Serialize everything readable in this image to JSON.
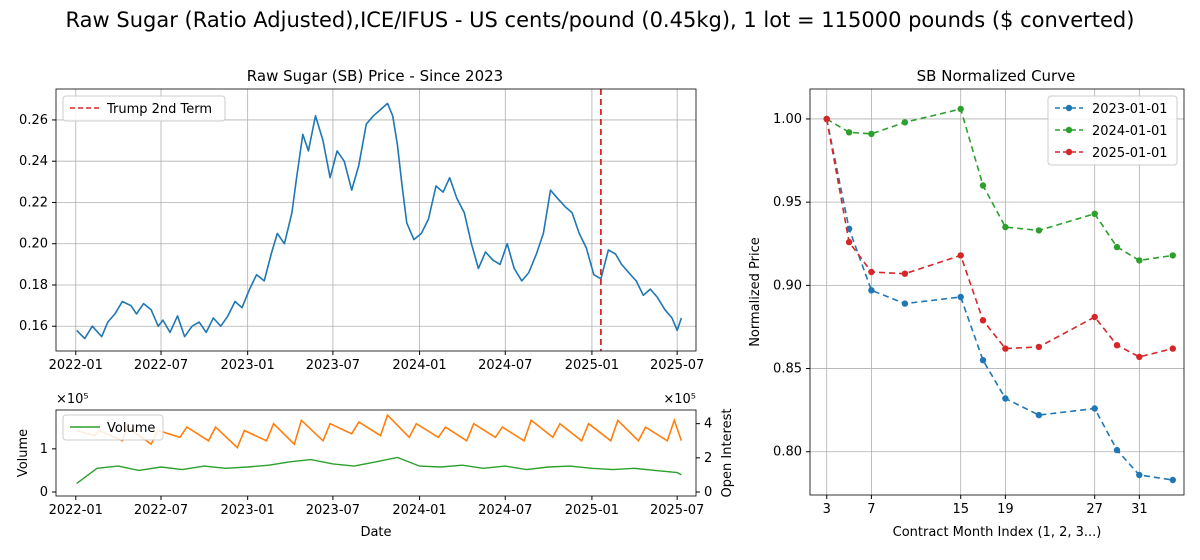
{
  "suptitle": "Raw Sugar (Ratio Adjusted),ICE/IFUS - US cents/pound (0.45kg), 1 lot = 115000 pounds ($ converted)",
  "chart_data": [
    {
      "type": "line",
      "title": "Raw Sugar (SB) Price - Since 2023",
      "xlabel": "",
      "ylabel": "",
      "x_ticks": [
        "2022-01",
        "2022-07",
        "2023-01",
        "2023-07",
        "2024-01",
        "2024-07",
        "2025-01",
        "2025-07"
      ],
      "y_ticks": [
        "0.16",
        "0.18",
        "0.20",
        "0.22",
        "0.24",
        "0.26"
      ],
      "xlim": [
        "2021-11-20",
        "2025-08-10"
      ],
      "ylim": [
        0.148,
        0.275
      ],
      "grid": true,
      "legend": "upper left",
      "color": "#1f77b4",
      "series": [
        {
          "x": [
            "2022-01-03",
            "2022-01-20",
            "2022-02-05",
            "2022-02-25",
            "2022-03-10",
            "2022-03-25",
            "2022-04-10",
            "2022-04-28",
            "2022-05-10",
            "2022-05-25",
            "2022-06-10",
            "2022-06-25",
            "2022-07-05",
            "2022-07-20",
            "2022-08-05",
            "2022-08-20",
            "2022-09-05",
            "2022-09-20",
            "2022-10-05",
            "2022-10-20",
            "2022-11-05",
            "2022-11-20",
            "2022-12-05",
            "2022-12-20",
            "2023-01-05",
            "2023-01-20",
            "2023-02-05",
            "2023-02-20",
            "2023-03-05",
            "2023-03-20",
            "2023-04-05",
            "2023-04-15",
            "2023-04-28",
            "2023-05-10",
            "2023-05-25",
            "2023-06-10",
            "2023-06-25",
            "2023-07-10",
            "2023-07-25",
            "2023-08-10",
            "2023-08-25",
            "2023-09-10",
            "2023-09-25",
            "2023-10-10",
            "2023-10-25",
            "2023-11-05",
            "2023-11-15",
            "2023-11-25",
            "2023-12-05",
            "2023-12-20",
            "2024-01-05",
            "2024-01-20",
            "2024-02-05",
            "2024-02-20",
            "2024-03-05",
            "2024-03-20",
            "2024-04-05",
            "2024-04-20",
            "2024-05-05",
            "2024-05-20",
            "2024-06-05",
            "2024-06-20",
            "2024-07-05",
            "2024-07-20",
            "2024-08-05",
            "2024-08-20",
            "2024-09-05",
            "2024-09-20",
            "2024-10-05",
            "2024-10-20",
            "2024-11-05",
            "2024-11-20",
            "2024-12-05",
            "2024-12-20",
            "2025-01-05",
            "2025-01-20",
            "2025-02-05",
            "2025-02-20",
            "2025-03-05",
            "2025-03-20",
            "2025-04-05",
            "2025-04-20",
            "2025-05-05",
            "2025-05-20",
            "2025-06-05",
            "2025-06-20",
            "2025-07-01",
            "2025-07-10"
          ],
          "y": [
            0.158,
            0.154,
            0.16,
            0.155,
            0.162,
            0.166,
            0.172,
            0.17,
            0.166,
            0.171,
            0.168,
            0.16,
            0.163,
            0.157,
            0.165,
            0.155,
            0.16,
            0.162,
            0.157,
            0.164,
            0.16,
            0.165,
            0.172,
            0.169,
            0.178,
            0.185,
            0.182,
            0.195,
            0.205,
            0.2,
            0.215,
            0.232,
            0.253,
            0.245,
            0.262,
            0.25,
            0.232,
            0.245,
            0.24,
            0.226,
            0.238,
            0.258,
            0.262,
            0.265,
            0.268,
            0.262,
            0.248,
            0.228,
            0.21,
            0.202,
            0.205,
            0.212,
            0.228,
            0.225,
            0.232,
            0.222,
            0.215,
            0.2,
            0.188,
            0.196,
            0.192,
            0.19,
            0.2,
            0.188,
            0.182,
            0.186,
            0.195,
            0.205,
            0.226,
            0.222,
            0.218,
            0.215,
            0.205,
            0.198,
            0.185,
            0.183,
            0.197,
            0.195,
            0.19,
            0.186,
            0.182,
            0.175,
            0.178,
            0.174,
            0.168,
            0.164,
            0.158,
            0.164
          ]
        }
      ],
      "vline": {
        "x": "2025-01-20",
        "label": "Trump 2nd Term",
        "color": "#d62728"
      }
    },
    {
      "type": "line",
      "title": "",
      "xlabel": "Date",
      "ylabel": "Volume",
      "ylabel_right": "Open Interest",
      "offset_left": "×10⁵",
      "offset_right": "×10⁵",
      "x_ticks": [
        "2022-01",
        "2022-07",
        "2023-01",
        "2023-07",
        "2024-01",
        "2024-07",
        "2025-01",
        "2025-07"
      ],
      "y_ticks_left": [
        "0",
        "1"
      ],
      "y_ticks_right": [
        "0",
        "2",
        "4"
      ],
      "ylim_left": [
        0,
        190000
      ],
      "ylim_right": [
        0,
        480000
      ],
      "grid": false,
      "legend": "upper left",
      "colors": {
        "volume": "#2ca02c",
        "open_interest": "#ff7f0e"
      },
      "series": [
        {
          "name": "Volume",
          "x": [
            "2022-01-03",
            "2022-02-15",
            "2022-04-01",
            "2022-05-15",
            "2022-07-01",
            "2022-08-15",
            "2022-10-01",
            "2022-11-15",
            "2023-01-01",
            "2023-02-15",
            "2023-04-01",
            "2023-05-15",
            "2023-07-01",
            "2023-08-15",
            "2023-10-01",
            "2023-11-15",
            "2024-01-01",
            "2024-02-15",
            "2024-04-01",
            "2024-05-15",
            "2024-07-01",
            "2024-08-15",
            "2024-10-01",
            "2024-11-15",
            "2025-01-01",
            "2025-02-15",
            "2025-04-01",
            "2025-05-15",
            "2025-07-01",
            "2025-07-10"
          ],
          "y": [
            20000,
            55000,
            60000,
            50000,
            58000,
            52000,
            60000,
            55000,
            58000,
            62000,
            70000,
            75000,
            65000,
            60000,
            70000,
            80000,
            60000,
            58000,
            62000,
            55000,
            60000,
            52000,
            58000,
            60000,
            55000,
            52000,
            55000,
            50000,
            45000,
            40000
          ]
        },
        {
          "name": "",
          "x": [
            "2022-01-03",
            "2022-02-10",
            "2022-02-20",
            "2022-04-10",
            "2022-04-20",
            "2022-06-10",
            "2022-06-25",
            "2022-08-10",
            "2022-08-25",
            "2022-10-10",
            "2022-10-25",
            "2022-12-10",
            "2022-12-25",
            "2023-02-10",
            "2023-02-25",
            "2023-04-10",
            "2023-04-25",
            "2023-06-10",
            "2023-06-25",
            "2023-08-10",
            "2023-08-25",
            "2023-10-10",
            "2023-10-25",
            "2023-12-10",
            "2023-12-25",
            "2024-02-10",
            "2024-02-25",
            "2024-04-10",
            "2024-04-25",
            "2024-06-10",
            "2024-06-25",
            "2024-08-10",
            "2024-08-25",
            "2024-10-10",
            "2024-10-25",
            "2024-12-10",
            "2024-12-25",
            "2025-02-10",
            "2025-02-25",
            "2025-04-10",
            "2025-04-25",
            "2025-06-10",
            "2025-06-25",
            "2025-07-10"
          ],
          "y": [
            360000,
            330000,
            360000,
            300000,
            380000,
            280000,
            360000,
            320000,
            380000,
            300000,
            380000,
            260000,
            360000,
            300000,
            400000,
            280000,
            420000,
            300000,
            400000,
            340000,
            410000,
            330000,
            450000,
            320000,
            400000,
            320000,
            380000,
            300000,
            400000,
            320000,
            380000,
            300000,
            420000,
            320000,
            400000,
            300000,
            400000,
            300000,
            420000,
            300000,
            380000,
            300000,
            420000,
            300000
          ]
        }
      ]
    },
    {
      "type": "line",
      "title": "SB Normalized Curve",
      "xlabel": "Contract Month Index (1, 2, 3...)",
      "ylabel": "Normalized Price",
      "x_ticks": [
        "3",
        "7",
        "15",
        "19",
        "27",
        "31"
      ],
      "y_ticks": [
        "0.80",
        "0.85",
        "0.90",
        "0.95",
        "1.00"
      ],
      "xlim": [
        1.5,
        35
      ],
      "ylim": [
        0.774,
        1.018
      ],
      "grid": true,
      "legend": "upper right",
      "series": [
        {
          "name": "2023-01-01",
          "color": "#1f77b4",
          "x": [
            3,
            5,
            7,
            10,
            15,
            17,
            19,
            22,
            27,
            29,
            31,
            34
          ],
          "y": [
            1.0,
            0.934,
            0.897,
            0.889,
            0.893,
            0.855,
            0.832,
            0.822,
            0.826,
            0.801,
            0.786,
            0.783
          ]
        },
        {
          "name": "2024-01-01",
          "color": "#2ca02c",
          "x": [
            3,
            5,
            7,
            10,
            15,
            17,
            19,
            22,
            27,
            29,
            31,
            34
          ],
          "y": [
            1.0,
            0.992,
            0.991,
            0.998,
            1.006,
            0.96,
            0.935,
            0.933,
            0.943,
            0.923,
            0.915,
            0.918
          ]
        },
        {
          "name": "2025-01-01",
          "color": "#d62728",
          "x": [
            3,
            5,
            7,
            10,
            15,
            17,
            19,
            22,
            27,
            29,
            31,
            34
          ],
          "y": [
            1.0,
            0.926,
            0.908,
            0.907,
            0.918,
            0.879,
            0.862,
            0.863,
            0.881,
            0.864,
            0.857,
            0.862
          ]
        }
      ]
    }
  ]
}
